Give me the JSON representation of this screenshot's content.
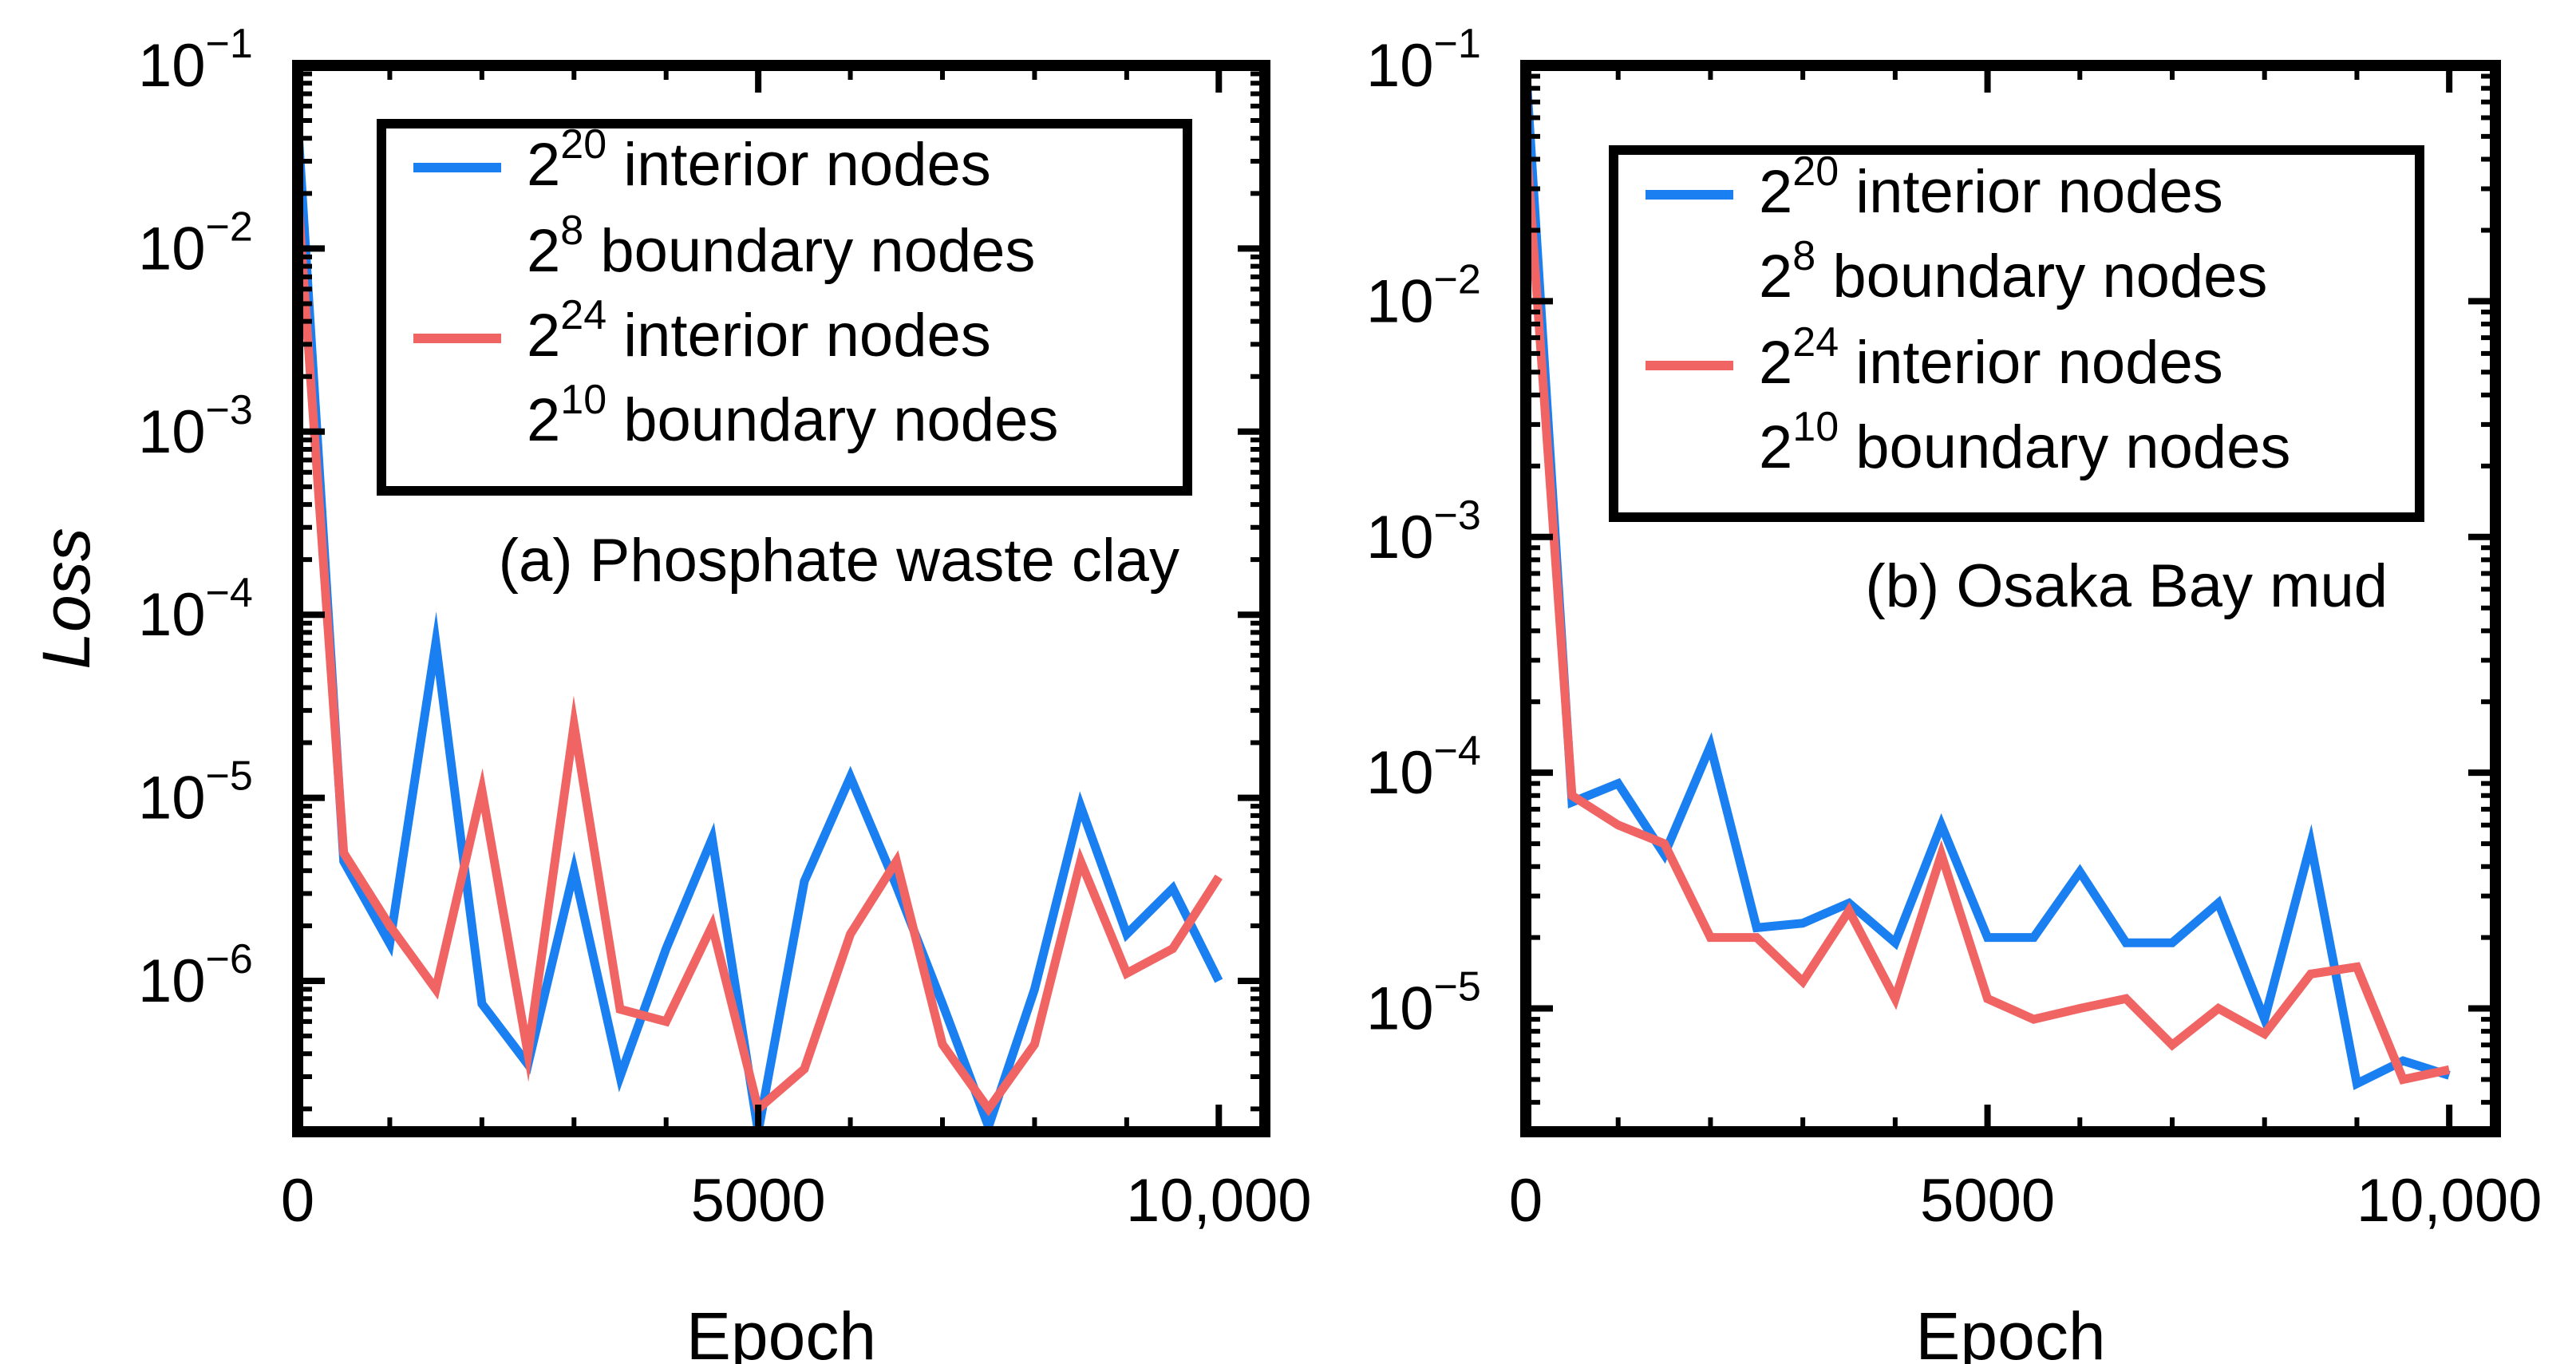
{
  "chart_data": [
    {
      "type": "line",
      "panel_label": "(a) Phosphate waste clay",
      "xlabel": "Epoch",
      "ylabel": "Loss",
      "y_scale": "log",
      "xlim": [
        0,
        10500
      ],
      "ylim": [
        1.5e-07,
        0.1
      ],
      "x_ticks": [
        0,
        5000,
        10000
      ],
      "x_tick_labels": [
        "0",
        "5000",
        "10,000"
      ],
      "y_ticks": [
        0.1,
        0.01,
        0.001,
        0.0001,
        1e-05,
        1e-06
      ],
      "y_tick_labels": [
        {
          "base": "10",
          "exp": "−1"
        },
        {
          "base": "10",
          "exp": "−2"
        },
        {
          "base": "10",
          "exp": "−3"
        },
        {
          "base": "10",
          "exp": "−4"
        },
        {
          "base": "10",
          "exp": "−5"
        },
        {
          "base": "10",
          "exp": "−6"
        }
      ],
      "legend_position": "top-right",
      "grid": false,
      "series": [
        {
          "name_lines": [
            {
              "base": "2",
              "exp": "20",
              "rest": " interior nodes"
            },
            {
              "base": "2",
              "exp": "8",
              "rest": " boundary nodes"
            }
          ],
          "color": "#1a7ff0",
          "x": [
            0,
            500,
            1000,
            1500,
            2000,
            2500,
            3000,
            3500,
            4000,
            4500,
            5000,
            5500,
            6000,
            6500,
            7000,
            7500,
            8000,
            8500,
            9000,
            9500,
            10000
          ],
          "y": [
            0.05,
            4.5e-06,
            1.6e-06,
            7e-05,
            7.5e-07,
            3.5e-07,
            4e-06,
            3e-07,
            1.5e-06,
            6e-06,
            1.5e-07,
            3.5e-06,
            1.3e-05,
            3.3e-06,
            7.5e-07,
            1.6e-07,
            9e-07,
            9e-06,
            1.8e-06,
            3.2e-06,
            1e-06
          ]
        },
        {
          "name_lines": [
            {
              "base": "2",
              "exp": "24",
              "rest": " interior nodes"
            },
            {
              "base": "2",
              "exp": "10",
              "rest": " boundary nodes"
            }
          ],
          "color": "#f06464",
          "x": [
            0,
            500,
            1000,
            1500,
            2000,
            2500,
            3000,
            3500,
            4000,
            4500,
            5000,
            5500,
            6000,
            6500,
            7000,
            7500,
            8000,
            8500,
            9000,
            9500,
            10000
          ],
          "y": [
            0.02,
            5e-06,
            2e-06,
            9e-07,
            1.1e-05,
            4e-07,
            2.5e-05,
            7e-07,
            6e-07,
            2e-06,
            2e-07,
            3.3e-07,
            1.8e-06,
            4.5e-06,
            4.5e-07,
            2e-07,
            4.5e-07,
            4.5e-06,
            1.1e-06,
            1.5e-06,
            3.7e-06
          ]
        }
      ]
    },
    {
      "type": "line",
      "panel_label": "(b) Osaka Bay mud",
      "xlabel": "Epoch",
      "ylabel": "",
      "y_scale": "log",
      "xlim": [
        0,
        10500
      ],
      "ylim": [
        3e-06,
        0.1
      ],
      "x_ticks": [
        0,
        5000,
        10000
      ],
      "x_tick_labels": [
        "0",
        "5000",
        "10,000"
      ],
      "y_ticks": [
        0.1,
        0.01,
        0.001,
        0.0001,
        1e-05
      ],
      "y_tick_labels": [
        {
          "base": "10",
          "exp": "−1"
        },
        {
          "base": "10",
          "exp": "−2"
        },
        {
          "base": "10",
          "exp": "−3"
        },
        {
          "base": "10",
          "exp": "−4"
        },
        {
          "base": "10",
          "exp": "−5"
        }
      ],
      "legend_position": "top-right",
      "grid": false,
      "series": [
        {
          "name_lines": [
            {
              "base": "2",
              "exp": "20",
              "rest": " interior nodes"
            },
            {
              "base": "2",
              "exp": "8",
              "rest": " boundary nodes"
            }
          ],
          "color": "#1a7ff0",
          "x": [
            0,
            500,
            1000,
            1500,
            2000,
            2500,
            3000,
            3500,
            4000,
            4500,
            5000,
            5500,
            6000,
            6500,
            7000,
            7500,
            8000,
            8500,
            9000,
            9500,
            10000
          ],
          "y": [
            0.1,
            7.5e-05,
            9e-05,
            4.5e-05,
            0.00013,
            2.2e-05,
            2.3e-05,
            2.8e-05,
            1.9e-05,
            6e-05,
            2e-05,
            2e-05,
            3.8e-05,
            1.9e-05,
            1.9e-05,
            2.8e-05,
            9e-06,
            5e-05,
            4.8e-06,
            6e-06,
            5.2e-06
          ]
        },
        {
          "name_lines": [
            {
              "base": "2",
              "exp": "24",
              "rest": " interior nodes"
            },
            {
              "base": "2",
              "exp": "10",
              "rest": " boundary nodes"
            }
          ],
          "color": "#f06464",
          "x": [
            0,
            500,
            1000,
            1500,
            2000,
            2500,
            3000,
            3500,
            4000,
            4500,
            5000,
            5500,
            6000,
            6500,
            7000,
            7500,
            8000,
            8500,
            9000,
            9500,
            10000
          ],
          "y": [
            0.05,
            8e-05,
            6e-05,
            5e-05,
            2e-05,
            2e-05,
            1.3e-05,
            2.6e-05,
            1.1e-05,
            4.5e-05,
            1.1e-05,
            9e-06,
            1e-05,
            1.1e-05,
            7e-06,
            1e-05,
            7.8e-06,
            1.4e-05,
            1.5e-05,
            5e-06,
            5.5e-06
          ]
        }
      ]
    }
  ]
}
